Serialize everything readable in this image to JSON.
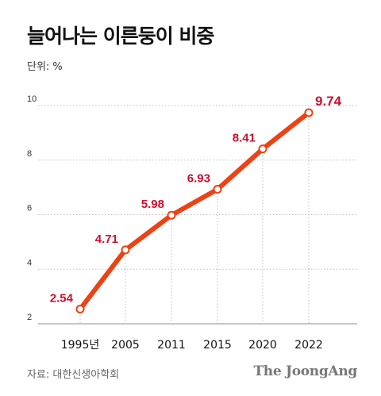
{
  "header": {
    "title": "늘어나는 이른둥이 비중",
    "unit": "단위: %"
  },
  "footer": {
    "source": "자료: 대한신생아학회",
    "brand": "The JoongAng"
  },
  "colors": {
    "line": "#ee4114",
    "label": "#c8102e",
    "grid": "#bfbfbf",
    "point_fill": "#ffffff"
  },
  "chart_data": {
    "type": "line",
    "title": "늘어나는 이른둥이 비중",
    "ylabel": "단위: %",
    "xlabel": "",
    "categories": [
      "1995년",
      "2005",
      "2011",
      "2015",
      "2020",
      "2022"
    ],
    "series": [
      {
        "values": [
          2.54,
          4.71,
          5.98,
          6.93,
          8.41,
          9.74
        ]
      }
    ],
    "data_labels": [
      "2.54",
      "4.71",
      "5.98",
      "6.93",
      "8.41",
      "9.74"
    ],
    "y_ticks": [
      "2",
      "4",
      "6",
      "8",
      "10"
    ],
    "ylim": [
      2,
      10
    ],
    "grid": "horizontal dotted",
    "legend": "none"
  }
}
